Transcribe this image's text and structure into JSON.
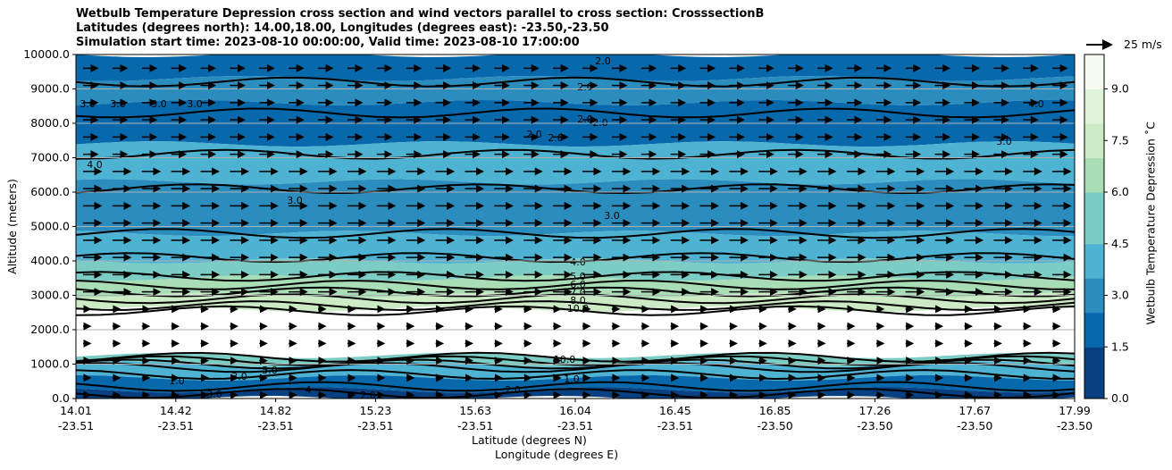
{
  "chart_data": {
    "type": "contour",
    "title_lines": [
      "Wetbulb Temperature Depression cross section and wind vectors parallel to cross section: CrosssectionB",
      "Latitudes (degrees north): 14.00,18.00, Longitudes (degrees east): -23.50,-23.50",
      "Simulation start time: 2023-08-10 00:00:00, Valid time: 2023-08-10 17:00:00"
    ],
    "xlabel_lat": "Latitude (degrees N)",
    "xlabel_lon": "Longitude (degrees E)",
    "ylabel": "Altitude (meters)",
    "ylim": [
      0,
      10000
    ],
    "y_ticks": [
      "0.0",
      "1000.0",
      "2000.0",
      "3000.0",
      "4000.0",
      "5000.0",
      "6000.0",
      "7000.0",
      "8000.0",
      "9000.0",
      "10000.0"
    ],
    "y_tick_values": [
      0,
      1000,
      2000,
      3000,
      4000,
      5000,
      6000,
      7000,
      8000,
      9000,
      10000
    ],
    "x_ticks_lat": [
      "14.01",
      "14.42",
      "14.82",
      "15.23",
      "15.63",
      "16.04",
      "16.45",
      "16.85",
      "17.26",
      "17.67",
      "17.99"
    ],
    "x_ticks_lon": [
      "-23.51",
      "-23.51",
      "-23.51",
      "-23.51",
      "-23.51",
      "-23.51",
      "-23.51",
      "-23.50",
      "-23.50",
      "-23.50",
      "-23.50"
    ],
    "colorbar_label": "Wetbulb Temperature Depression ˚C",
    "colorbar_ticks": [
      "0.0",
      "1.5",
      "3.0",
      "4.5",
      "6.0",
      "7.5",
      "9.0"
    ],
    "colorbar_tick_values": [
      0,
      1.5,
      3.0,
      4.5,
      6.0,
      7.5,
      9.0
    ],
    "colorbar_range": [
      0,
      10
    ],
    "colormap": [
      "#084081",
      "#0868ac",
      "#2b8cbe",
      "#4eb3d3",
      "#7bccc4",
      "#a8ddb5",
      "#ccebc5",
      "#e0f3db",
      "#f7fcf0"
    ],
    "wind_key_label": "25 m/s",
    "contour_labels": [
      "2.0",
      "2.0",
      "2.0",
      "2.0",
      "2.0",
      "2.0",
      "3.0",
      "3.0",
      "3.0",
      "3.0",
      "3.0",
      "3.0",
      "3.0",
      "4.0",
      "4.0",
      "4.0",
      "5.0",
      "6.0",
      "7.0",
      "8.0",
      "10.0",
      "10.0",
      "1.0",
      "1.0",
      "2.0",
      "2.0",
      "3.0",
      "3.0",
      "5.0",
      "4"
    ],
    "contour_levels": [
      2.0,
      3.0,
      4.0,
      5.0,
      6.0,
      7.0,
      8.0,
      10.0
    ],
    "grid": "horizontal"
  }
}
